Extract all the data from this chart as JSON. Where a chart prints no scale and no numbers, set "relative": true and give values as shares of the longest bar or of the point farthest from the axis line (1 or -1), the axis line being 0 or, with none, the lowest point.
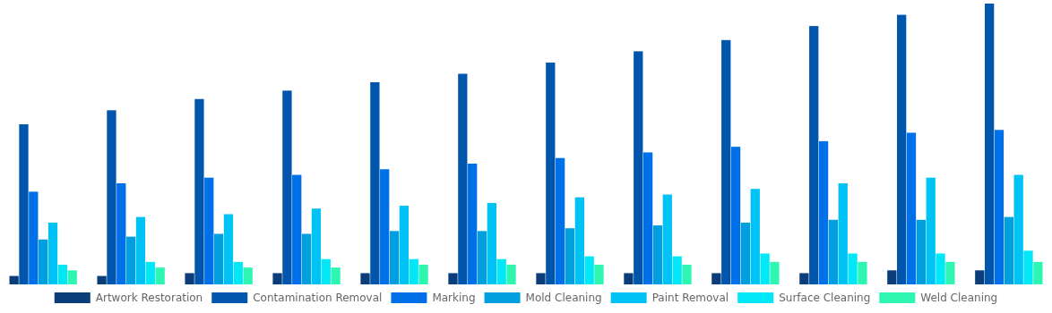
{
  "chart_data": {
    "type": "bar",
    "relative": true,
    "legend": "bottom",
    "categories": [
      null,
      null,
      null,
      null,
      null,
      null,
      null,
      null,
      null,
      null,
      null,
      null
    ],
    "series": [
      {
        "name": "Artwork Restoration",
        "color": "#0a3d7a",
        "values": [
          0.03,
          0.03,
          0.04,
          0.04,
          0.04,
          0.04,
          0.04,
          0.04,
          0.04,
          0.04,
          0.05,
          0.05
        ]
      },
      {
        "name": "Contamination Removal",
        "color": "#0056ac",
        "values": [
          0.57,
          0.62,
          0.66,
          0.69,
          0.72,
          0.75,
          0.79,
          0.83,
          0.87,
          0.92,
          0.96,
          1
        ]
      },
      {
        "name": "Marking",
        "color": "#0070e8",
        "values": [
          0.33,
          0.36,
          0.38,
          0.39,
          0.41,
          0.43,
          0.45,
          0.47,
          0.49,
          0.51,
          0.54,
          0.55
        ]
      },
      {
        "name": "Mold Cleaning",
        "color": "#00a0e0",
        "values": [
          0.16,
          0.17,
          0.18,
          0.18,
          0.19,
          0.19,
          0.2,
          0.21,
          0.22,
          0.23,
          0.23,
          0.24
        ]
      },
      {
        "name": "Paint Removal",
        "color": "#00c2f5",
        "values": [
          0.22,
          0.24,
          0.25,
          0.27,
          0.28,
          0.29,
          0.31,
          0.32,
          0.34,
          0.36,
          0.38,
          0.39
        ]
      },
      {
        "name": "Surface Cleaning",
        "color": "#00e8f8",
        "values": [
          0.07,
          0.08,
          0.08,
          0.09,
          0.09,
          0.09,
          0.1,
          0.1,
          0.11,
          0.11,
          0.11,
          0.12
        ]
      },
      {
        "name": "Weld Cleaning",
        "color": "#2ef5b0",
        "values": [
          0.05,
          0.06,
          0.06,
          0.06,
          0.07,
          0.07,
          0.07,
          0.07,
          0.08,
          0.08,
          0.08,
          0.08
        ]
      }
    ]
  }
}
